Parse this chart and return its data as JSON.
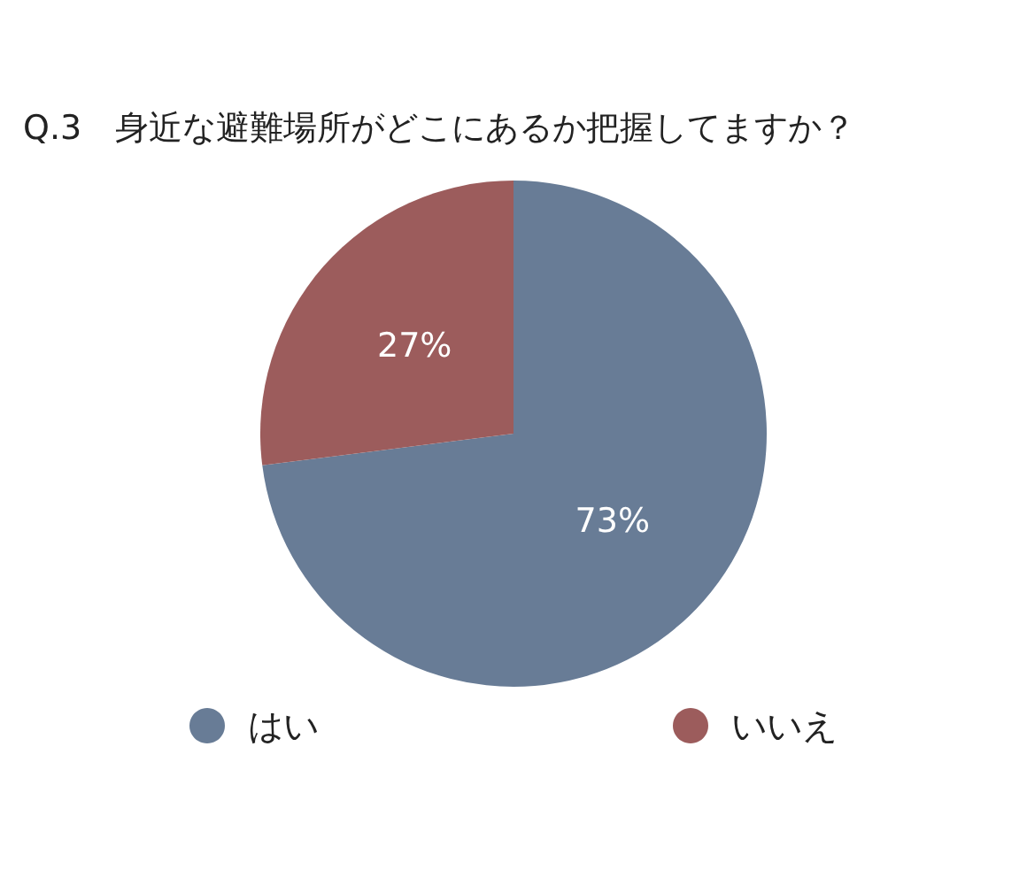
{
  "chart_data": {
    "type": "pie",
    "title": "Q.3　身近な避難場所がどこにあるか把握してますか？",
    "categories": [
      "はい",
      "いいえ"
    ],
    "values": [
      73,
      27
    ],
    "colors": [
      "#687c96",
      "#9c5c5c"
    ],
    "value_labels": [
      "73%",
      "27%"
    ],
    "legend": "bottom"
  }
}
